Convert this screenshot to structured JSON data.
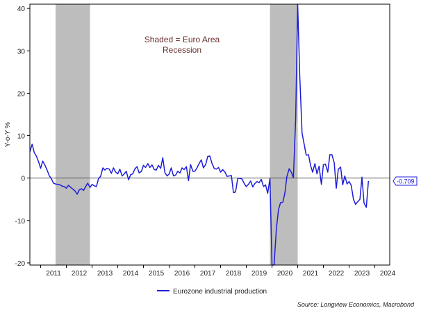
{
  "chart_data": {
    "type": "line",
    "title": "",
    "ylabel": "Y-o-Y %",
    "xlabel": "",
    "ylim": [
      -20.5,
      41
    ],
    "xlim": [
      2010.58,
      2024.58
    ],
    "y_ticks": [
      40,
      30,
      20,
      10,
      0,
      -10,
      -20
    ],
    "x_tick_labels": [
      "2011",
      "2012",
      "2013",
      "2014",
      "2015",
      "2016",
      "2017",
      "2018",
      "2019",
      "2020",
      "2021",
      "2022",
      "2023",
      "2024"
    ],
    "x_tick_positions": [
      2011,
      2012,
      2013,
      2014,
      2015,
      2016,
      2017,
      2018,
      2019,
      2020,
      2021,
      2022,
      2023,
      2024
    ],
    "recessions": [
      [
        2011.58,
        2012.92
      ],
      [
        2019.92,
        2021.0
      ]
    ],
    "annotation": [
      "Shaded = Euro Area",
      "Recession"
    ],
    "end_value_label": "-0.709",
    "colors": {
      "line": "#1d1dd8",
      "recession": "#bdbdbd",
      "zero_line": "#555555"
    },
    "series": [
      {
        "name": "Eurozone industrial production",
        "points": [
          [
            2010.58,
            6.2
          ],
          [
            2010.67,
            8.0
          ],
          [
            2010.75,
            6.0
          ],
          [
            2010.83,
            5.2
          ],
          [
            2010.92,
            3.8
          ],
          [
            2011.0,
            2.3
          ],
          [
            2011.08,
            4.0
          ],
          [
            2011.17,
            3.0
          ],
          [
            2011.25,
            1.9
          ],
          [
            2011.33,
            0.6
          ],
          [
            2011.42,
            -0.2
          ],
          [
            2011.5,
            -1.2
          ],
          [
            2011.58,
            -1.4
          ],
          [
            2011.67,
            -1.5
          ],
          [
            2011.75,
            -1.6
          ],
          [
            2011.83,
            -1.9
          ],
          [
            2011.92,
            -2.0
          ],
          [
            2012.0,
            -2.4
          ],
          [
            2012.08,
            -1.7
          ],
          [
            2012.17,
            -2.2
          ],
          [
            2012.25,
            -2.6
          ],
          [
            2012.33,
            -3.0
          ],
          [
            2012.42,
            -3.8
          ],
          [
            2012.5,
            -2.8
          ],
          [
            2012.58,
            -2.5
          ],
          [
            2012.67,
            -2.9
          ],
          [
            2012.75,
            -2.0
          ],
          [
            2012.83,
            -1.2
          ],
          [
            2012.92,
            -2.2
          ],
          [
            2013.0,
            -1.5
          ],
          [
            2013.08,
            -1.8
          ],
          [
            2013.17,
            -2.0
          ],
          [
            2013.25,
            -0.1
          ],
          [
            2013.33,
            0.4
          ],
          [
            2013.42,
            2.4
          ],
          [
            2013.5,
            1.9
          ],
          [
            2013.58,
            2.3
          ],
          [
            2013.67,
            2.1
          ],
          [
            2013.75,
            1.1
          ],
          [
            2013.83,
            2.4
          ],
          [
            2013.92,
            1.4
          ],
          [
            2014.0,
            1.0
          ],
          [
            2014.08,
            2.1
          ],
          [
            2014.17,
            0.5
          ],
          [
            2014.25,
            1.0
          ],
          [
            2014.33,
            1.6
          ],
          [
            2014.42,
            -0.4
          ],
          [
            2014.5,
            0.8
          ],
          [
            2014.58,
            1.0
          ],
          [
            2014.67,
            2.2
          ],
          [
            2014.75,
            2.7
          ],
          [
            2014.83,
            1.2
          ],
          [
            2014.92,
            1.6
          ],
          [
            2015.0,
            3.0
          ],
          [
            2015.08,
            2.5
          ],
          [
            2015.17,
            3.4
          ],
          [
            2015.25,
            2.5
          ],
          [
            2015.33,
            3.1
          ],
          [
            2015.42,
            2.0
          ],
          [
            2015.5,
            1.9
          ],
          [
            2015.58,
            3.0
          ],
          [
            2015.67,
            2.3
          ],
          [
            2015.75,
            4.8
          ],
          [
            2015.83,
            1.3
          ],
          [
            2015.92,
            0.5
          ],
          [
            2016.0,
            1.0
          ],
          [
            2016.08,
            2.4
          ],
          [
            2016.17,
            0.5
          ],
          [
            2016.25,
            0.7
          ],
          [
            2016.33,
            1.6
          ],
          [
            2016.42,
            1.2
          ],
          [
            2016.5,
            2.4
          ],
          [
            2016.58,
            2.0
          ],
          [
            2016.67,
            2.7
          ],
          [
            2016.75,
            -0.6
          ],
          [
            2016.83,
            3.2
          ],
          [
            2016.92,
            1.6
          ],
          [
            2017.0,
            1.6
          ],
          [
            2017.08,
            2.4
          ],
          [
            2017.17,
            3.5
          ],
          [
            2017.25,
            4.3
          ],
          [
            2017.33,
            2.4
          ],
          [
            2017.42,
            3.2
          ],
          [
            2017.5,
            5.1
          ],
          [
            2017.58,
            5.2
          ],
          [
            2017.67,
            3.4
          ],
          [
            2017.75,
            2.3
          ],
          [
            2017.83,
            2.1
          ],
          [
            2017.92,
            2.5
          ],
          [
            2018.0,
            1.4
          ],
          [
            2018.08,
            2.0
          ],
          [
            2018.17,
            1.4
          ],
          [
            2018.25,
            0.4
          ],
          [
            2018.33,
            0.5
          ],
          [
            2018.42,
            0.6
          ],
          [
            2018.5,
            -3.4
          ],
          [
            2018.58,
            -3.3
          ],
          [
            2018.67,
            0.0
          ],
          [
            2018.75,
            -0.1
          ],
          [
            2018.83,
            -0.2
          ],
          [
            2018.92,
            -1.3
          ],
          [
            2019.0,
            -2.0
          ],
          [
            2019.08,
            -1.5
          ],
          [
            2019.17,
            -0.7
          ],
          [
            2019.25,
            -2.1
          ],
          [
            2019.33,
            -1.3
          ],
          [
            2019.42,
            -0.8
          ],
          [
            2019.5,
            -1.1
          ],
          [
            2019.58,
            -0.3
          ],
          [
            2019.67,
            -2.0
          ],
          [
            2019.75,
            -1.6
          ],
          [
            2019.83,
            -3.6
          ],
          [
            2019.92,
            -0.1
          ],
          [
            2020.0,
            -20.5
          ],
          [
            2020.08,
            -20.5
          ],
          [
            2020.17,
            -12.0
          ],
          [
            2020.25,
            -7.5
          ],
          [
            2020.33,
            -5.8
          ],
          [
            2020.42,
            -5.7
          ],
          [
            2020.5,
            -3.6
          ],
          [
            2020.58,
            0.4
          ],
          [
            2020.67,
            2.2
          ],
          [
            2020.75,
            1.4
          ],
          [
            2020.83,
            0.1
          ],
          [
            2020.92,
            14.0
          ],
          [
            2021.0,
            41.0
          ],
          [
            2021.08,
            24.0
          ],
          [
            2021.17,
            10.6
          ],
          [
            2021.25,
            8.0
          ],
          [
            2021.33,
            5.4
          ],
          [
            2021.42,
            5.5
          ],
          [
            2021.5,
            3.0
          ],
          [
            2021.58,
            1.4
          ],
          [
            2021.67,
            3.4
          ],
          [
            2021.75,
            1.0
          ],
          [
            2021.83,
            2.8
          ],
          [
            2021.92,
            -1.5
          ],
          [
            2022.0,
            3.2
          ],
          [
            2022.08,
            3.3
          ],
          [
            2022.17,
            1.4
          ],
          [
            2022.25,
            5.5
          ],
          [
            2022.33,
            5.5
          ],
          [
            2022.42,
            3.6
          ],
          [
            2022.5,
            -2.4
          ],
          [
            2022.58,
            2.1
          ],
          [
            2022.67,
            2.6
          ],
          [
            2022.75,
            -1.6
          ],
          [
            2022.83,
            0.5
          ],
          [
            2022.92,
            -1.4
          ],
          [
            2023.0,
            -0.8
          ],
          [
            2023.08,
            -1.7
          ],
          [
            2023.17,
            -5.0
          ],
          [
            2023.25,
            -6.2
          ],
          [
            2023.33,
            -5.6
          ],
          [
            2023.42,
            -5.0
          ],
          [
            2023.5,
            0.2
          ],
          [
            2023.58,
            -5.9
          ],
          [
            2023.67,
            -6.9
          ],
          [
            2023.75,
            -0.7
          ]
        ]
      }
    ]
  },
  "legend": {
    "label": "Eurozone industrial production"
  },
  "source": "Source: Longview Economics, Macrobond"
}
